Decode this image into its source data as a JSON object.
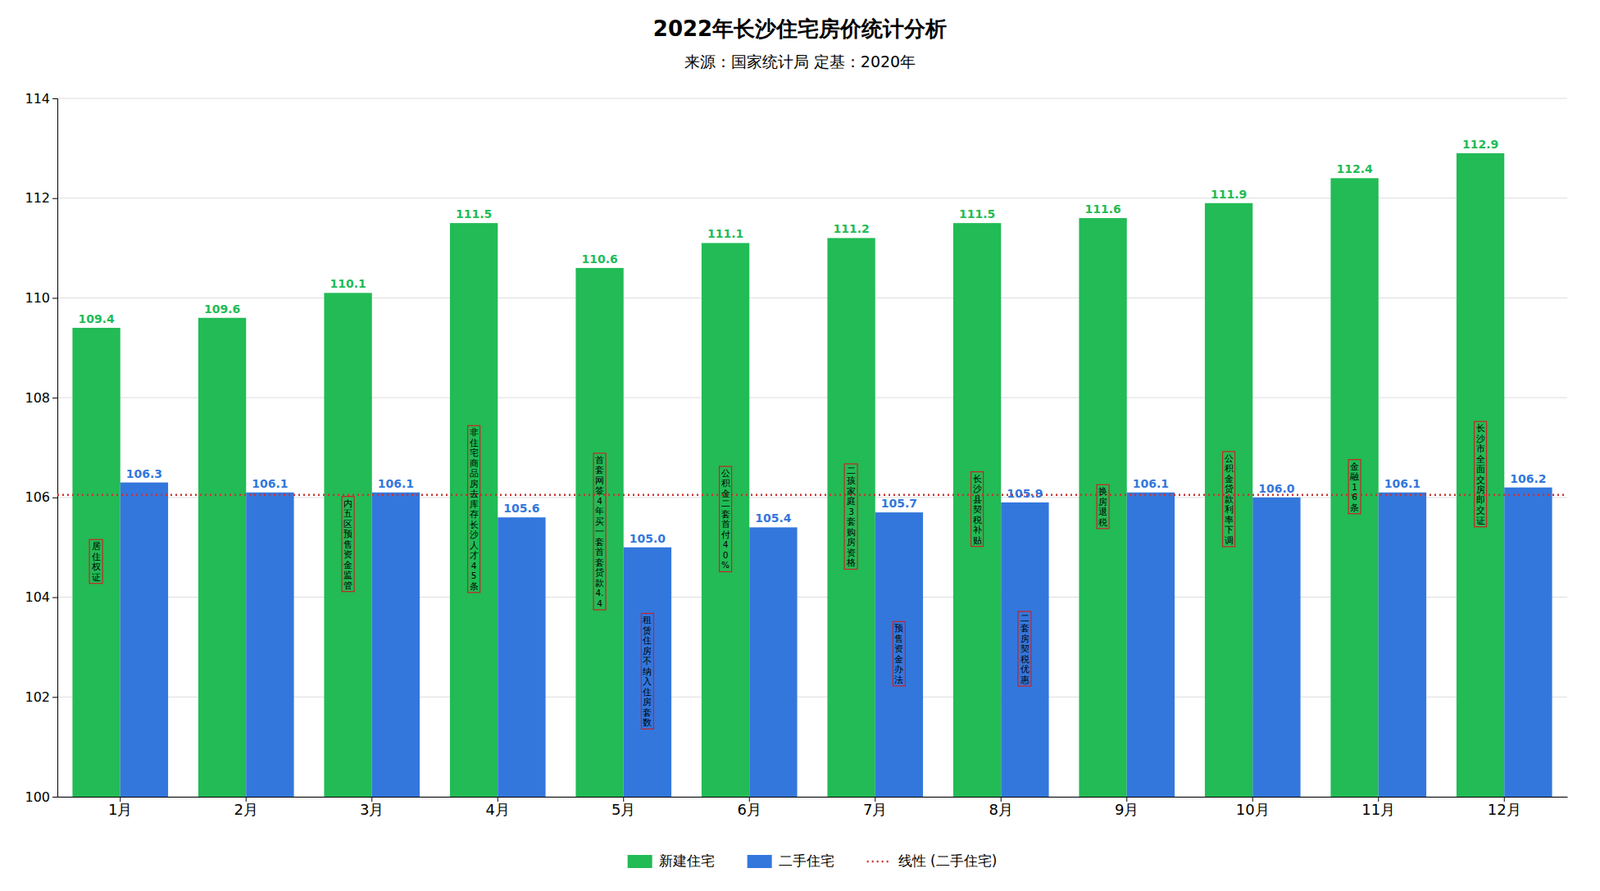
{
  "chart_data": {
    "type": "bar",
    "title": "2022年长沙住宅房价统计分析",
    "subtitle": "来源：国家统计局 定基：2020年",
    "categories": [
      "1月",
      "2月",
      "3月",
      "4月",
      "5月",
      "6月",
      "7月",
      "8月",
      "9月",
      "10月",
      "11月",
      "12月"
    ],
    "series": [
      {
        "name": "新建住宅",
        "color": "#22bb55",
        "values": [
          109.4,
          109.6,
          110.1,
          111.5,
          110.6,
          111.1,
          111.2,
          111.5,
          111.6,
          111.9,
          112.4,
          112.9
        ],
        "value_labels": [
          "109.4",
          "109.6",
          "110.1",
          "111.5",
          "110.6",
          "111.1",
          "111.2",
          "111.5",
          "111.6",
          "111.9",
          "112.4",
          "112.9"
        ],
        "annotations": [
          "居\n住\n权\n证",
          null,
          "内\n五\n区\n预\n售\n资\n金\n监\n管",
          "非\n住\n宅\n商\n品\n房\n去\n库\n存\n长\n沙\n人\n才\n4\n5\n条",
          "首\n套\n网\n签\n4\n年\n买\n一\n套\n首\n套\n贷\n款\n4.\n4",
          "公\n积\n金\n二\n套\n首\n付\n4\n0\n%",
          "二\n孩\n家\n庭\n3\n套\n购\n房\n资\n格",
          "长\n沙\n县\n契\n税\n补\n贴",
          "换\n房\n退\n税",
          "公\n积\n金\n贷\n款\n利\n率\n下\n调",
          "金\n融\n1\n6\n条",
          "长\n沙\n市\n全\n面\n交\n房\n即\n交\n证"
        ]
      },
      {
        "name": "二手住宅",
        "color": "#3377dd",
        "values": [
          106.3,
          106.1,
          106.1,
          105.6,
          105.0,
          105.4,
          105.7,
          105.9,
          106.1,
          106.0,
          106.1,
          106.2
        ],
        "value_labels": [
          "106.3",
          "106.1",
          "106.1",
          "105.6",
          "105.0",
          "105.4",
          "105.7",
          "105.9",
          "106.1",
          "106.0",
          "106.1",
          "106.2"
        ],
        "annotations": [
          null,
          null,
          null,
          null,
          "租\n赁\n住\n房\n不\n纳\n入\n住\n房\n套\n数",
          null,
          "预\n售\n资\n金\n办\n法",
          "二\n套\n房\n契\n税\n优\n惠",
          null,
          null,
          null,
          null
        ]
      }
    ],
    "trend_line": {
      "name": "线性 (二手住宅)",
      "color": "#cc3333",
      "value": 106.05,
      "line_style": "dotted"
    },
    "ylim": [
      100,
      114
    ],
    "yticks": [
      100,
      102,
      104,
      106,
      108,
      110,
      112,
      114
    ],
    "grid": true,
    "data_labels": true,
    "legend": "bottom"
  }
}
